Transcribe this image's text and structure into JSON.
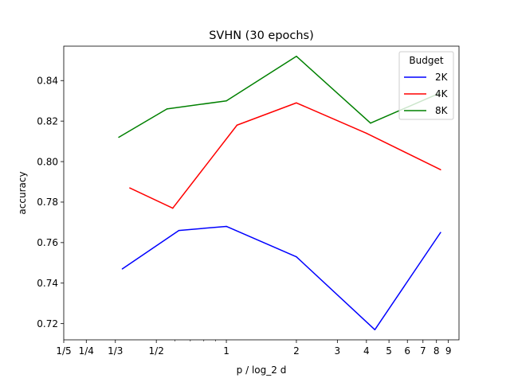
{
  "chart_data": {
    "type": "line",
    "title": "SVHN (30 epochs)",
    "xlabel": "p / log_2 d",
    "ylabel": "accuracy",
    "xscale": "log",
    "xlim": [
      0.2,
      10.0
    ],
    "ylim": [
      0.712,
      0.857
    ],
    "grid": false,
    "legend": {
      "title": "Budget",
      "placement": "top-right"
    },
    "x_ticks": [
      {
        "value": 0.2,
        "label": "1/5"
      },
      {
        "value": 0.25,
        "label": "1/4"
      },
      {
        "value": 0.3333,
        "label": "1/3"
      },
      {
        "value": 0.5,
        "label": "1/2"
      },
      {
        "value": 1,
        "label": "1"
      },
      {
        "value": 2,
        "label": "2"
      },
      {
        "value": 3,
        "label": "3"
      },
      {
        "value": 4,
        "label": "4"
      },
      {
        "value": 5,
        "label": "5"
      },
      {
        "value": 6,
        "label": "6"
      },
      {
        "value": 7,
        "label": "7"
      },
      {
        "value": 8,
        "label": "8"
      },
      {
        "value": 9,
        "label": "9"
      }
    ],
    "y_ticks": [
      {
        "value": 0.72,
        "label": "0.72"
      },
      {
        "value": 0.74,
        "label": "0.74"
      },
      {
        "value": 0.76,
        "label": "0.76"
      },
      {
        "value": 0.78,
        "label": "0.78"
      },
      {
        "value": 0.8,
        "label": "0.80"
      },
      {
        "value": 0.82,
        "label": "0.82"
      },
      {
        "value": 0.84,
        "label": "0.84"
      }
    ],
    "series": [
      {
        "name": "2K",
        "color": "#0000ff",
        "x": [
          0.3571,
          0.625,
          1.0,
          2.0,
          4.3478,
          8.3333
        ],
        "y": [
          0.747,
          0.766,
          0.768,
          0.753,
          0.717,
          0.765
        ]
      },
      {
        "name": "4K",
        "color": "#ff0000",
        "x": [
          0.3846,
          0.5882,
          1.1111,
          2.0,
          4.0,
          8.3333
        ],
        "y": [
          0.787,
          0.777,
          0.818,
          0.829,
          0.814,
          0.796
        ]
      },
      {
        "name": "8K",
        "color": "#008000",
        "x": [
          0.3448,
          0.5556,
          1.0,
          2.0,
          4.1667,
          8.3333
        ],
        "y": [
          0.812,
          0.826,
          0.83,
          0.852,
          0.819,
          0.834
        ]
      }
    ]
  }
}
